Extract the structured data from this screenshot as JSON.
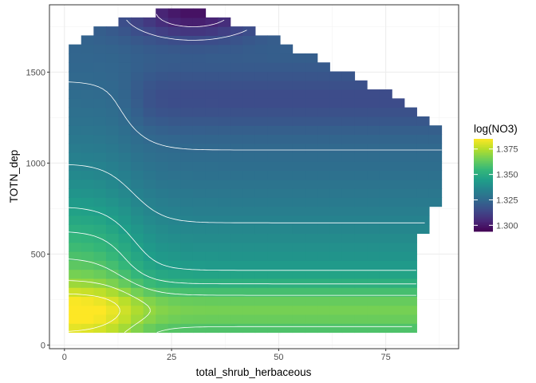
{
  "chart_data": {
    "type": "heatmap",
    "title": "",
    "xlabel": "total_shrub_herbaceous",
    "ylabel": "TOTN_dep",
    "xlim": [
      -3.5,
      92
    ],
    "ylim": [
      -20,
      1870
    ],
    "x_ticks": [
      0,
      25,
      50,
      75
    ],
    "x_tick_labels": [
      "0",
      "25",
      "50",
      "75"
    ],
    "y_ticks": [
      0,
      500,
      1000,
      1500
    ],
    "y_tick_labels": [
      "0",
      "500",
      "1000",
      "1500"
    ],
    "grid": true,
    "legend": {
      "title": "log(NO3)",
      "placement": "right",
      "colormap": "viridis",
      "limits": [
        1.294,
        1.385
      ],
      "breaks": [
        1.3,
        1.325,
        1.35,
        1.375
      ],
      "break_labels": [
        "1.300",
        "1.325",
        "1.350",
        "1.375"
      ]
    },
    "grid_x_range": [
      1,
      88
    ],
    "grid_y_range": [
      70,
      1850
    ],
    "nx": 30,
    "ny": 36,
    "y_top_boundary": [
      [
        1,
        1640
      ],
      [
        3,
        1680
      ],
      [
        8,
        1760
      ],
      [
        17,
        1800
      ],
      [
        27,
        1870
      ],
      [
        36,
        1800
      ],
      [
        46,
        1710
      ],
      [
        55,
        1620
      ],
      [
        63,
        1520
      ],
      [
        71,
        1420
      ],
      [
        79,
        1340
      ],
      [
        84,
        1260
      ],
      [
        88,
        1190
      ]
    ],
    "x_right_boundary": [
      [
        70,
        82
      ],
      [
        500,
        83
      ],
      [
        640,
        84
      ],
      [
        700,
        86
      ],
      [
        900,
        88
      ],
      [
        1190,
        88
      ]
    ],
    "value_model": {
      "base_high_y": 1.322,
      "base_low_y": 1.352,
      "y_transition_center": 610,
      "y_transition_width": 230,
      "low_y_bump": 0.018,
      "low_y_bump_center": 200,
      "low_y_bump_width": 140,
      "low_x_extra": 0.024,
      "low_x_edge": 15,
      "low_x_edge_width": 3.5,
      "top_dip": 0.024,
      "top_dip_center_x": 30,
      "top_dip_center_y": 1830,
      "top_dip_radius_x": 15,
      "top_dip_radius_y": 140,
      "mid_band_dip": 0.008,
      "mid_band_center_y": 1350,
      "mid_band_width_y": 170,
      "mid_band_x_start": 17
    },
    "contour_levels": [
      1.305,
      1.315,
      1.325,
      1.335,
      1.345,
      1.352,
      1.36,
      1.37,
      1.38
    ],
    "contour_color": "#ffffff"
  }
}
